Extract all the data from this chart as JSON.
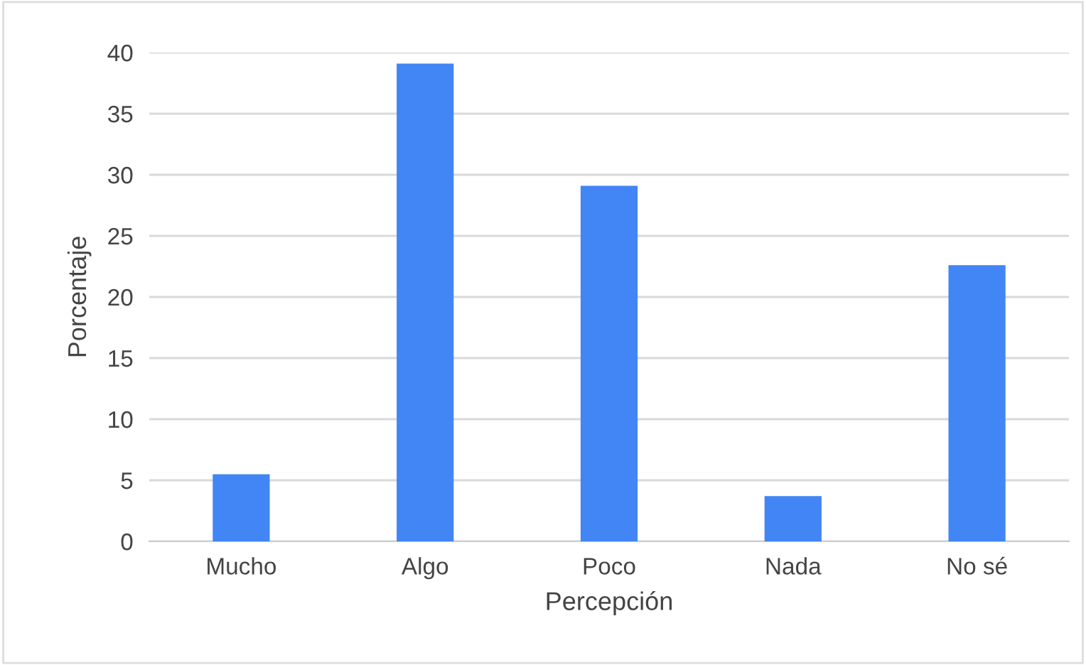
{
  "chart_data": {
    "type": "bar",
    "xlabel": "Percepción",
    "ylabel": "Porcentaje",
    "categories": [
      "Mucho",
      "Algo",
      "Poco",
      "Nada",
      "No sé"
    ],
    "values": [
      5.5,
      39.1,
      29.1,
      3.7,
      22.6
    ],
    "color": "#4285f4",
    "ylim": [
      0,
      40
    ],
    "yticks": [
      0,
      5,
      10,
      15,
      20,
      25,
      30,
      35,
      40
    ],
    "grid": "y",
    "legend": false
  }
}
